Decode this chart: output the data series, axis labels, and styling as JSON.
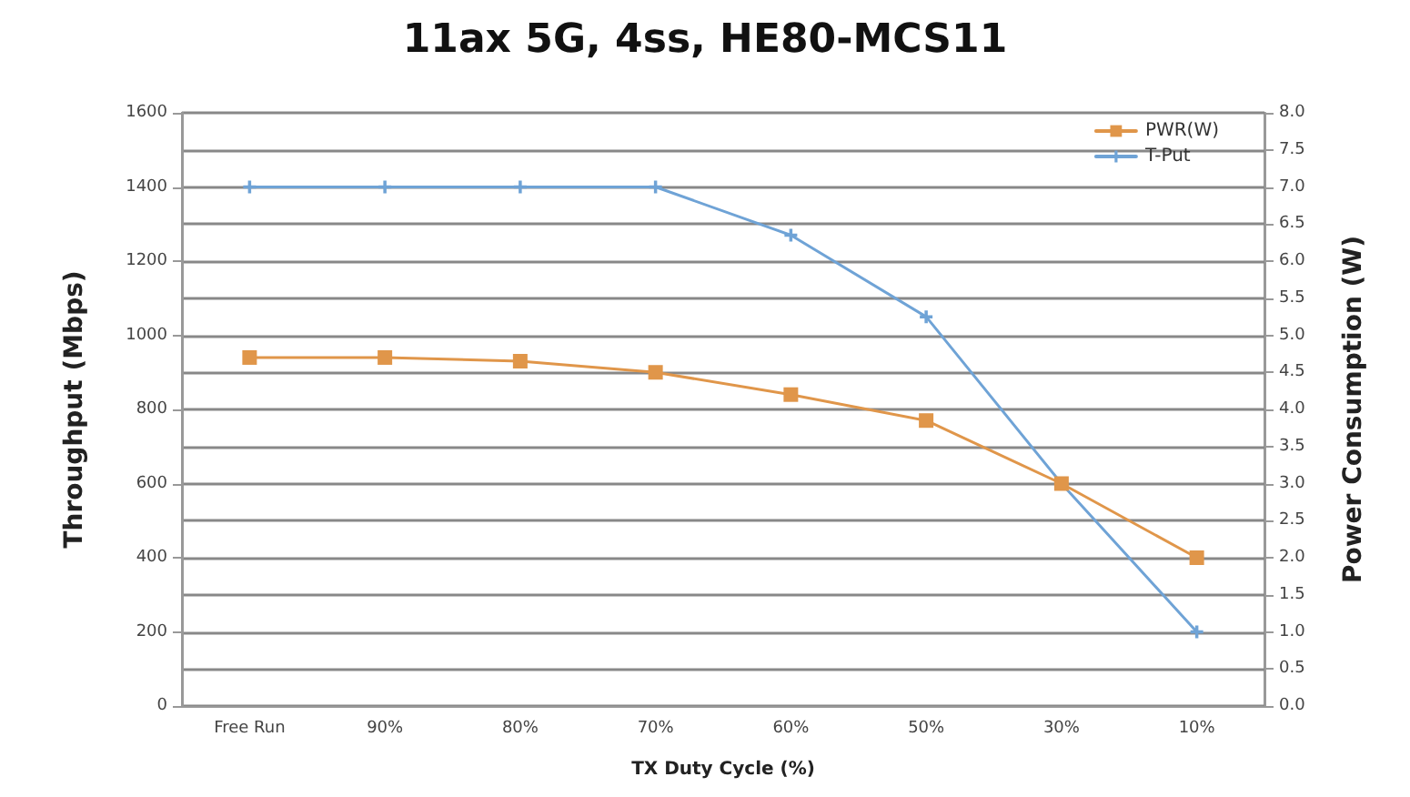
{
  "chart_data": {
    "type": "line",
    "title": "11ax 5G, 4ss, HE80-MCS11",
    "xlabel": "TX Duty Cycle (%)",
    "ylabel": "Throughput (Mbps)",
    "y2label": "Power Consumption (W)",
    "categories": [
      "Free Run",
      "90%",
      "80%",
      "70%",
      "60%",
      "50%",
      "30%",
      "10%"
    ],
    "series": [
      {
        "name": "PWR(W)",
        "color": "#e0964a",
        "axis": "y2",
        "marker": "square",
        "values": [
          4.7,
          4.7,
          4.65,
          4.5,
          4.2,
          3.85,
          3.0,
          2.0
        ]
      },
      {
        "name": "T-Put",
        "color": "#6fa3d6",
        "marker": "cross",
        "values": [
          1400,
          1400,
          1400,
          1400,
          1270,
          1050,
          600,
          200
        ]
      }
    ],
    "ylim": [
      0,
      1600
    ],
    "yticks": [
      0,
      200,
      400,
      600,
      800,
      1000,
      1200,
      1400,
      1600
    ],
    "y2lim": [
      0,
      8
    ],
    "y2ticks": [
      {
        "value": 0,
        "label": "0.0"
      },
      {
        "value": 0.5,
        "label": "0.5"
      },
      {
        "value": 1,
        "label": "1.0"
      },
      {
        "value": 1.5,
        "label": "1.5"
      },
      {
        "value": 2,
        "label": "2.0"
      },
      {
        "value": 2.5,
        "label": "2.5"
      },
      {
        "value": 3,
        "label": "3.0"
      },
      {
        "value": 3.5,
        "label": "3.5"
      },
      {
        "value": 4,
        "label": "4.0"
      },
      {
        "value": 4.5,
        "label": "4.5"
      },
      {
        "value": 5,
        "label": "5.0"
      },
      {
        "value": 5.5,
        "label": "5.5"
      },
      {
        "value": 6,
        "label": "6.0"
      },
      {
        "value": 6.5,
        "label": "6.5"
      },
      {
        "value": 7,
        "label": "7.0"
      },
      {
        "value": 7.5,
        "label": "7.5"
      },
      {
        "value": 8,
        "label": "8.0"
      }
    ],
    "grid": true,
    "legend": "top right",
    "line_style": "solid"
  }
}
